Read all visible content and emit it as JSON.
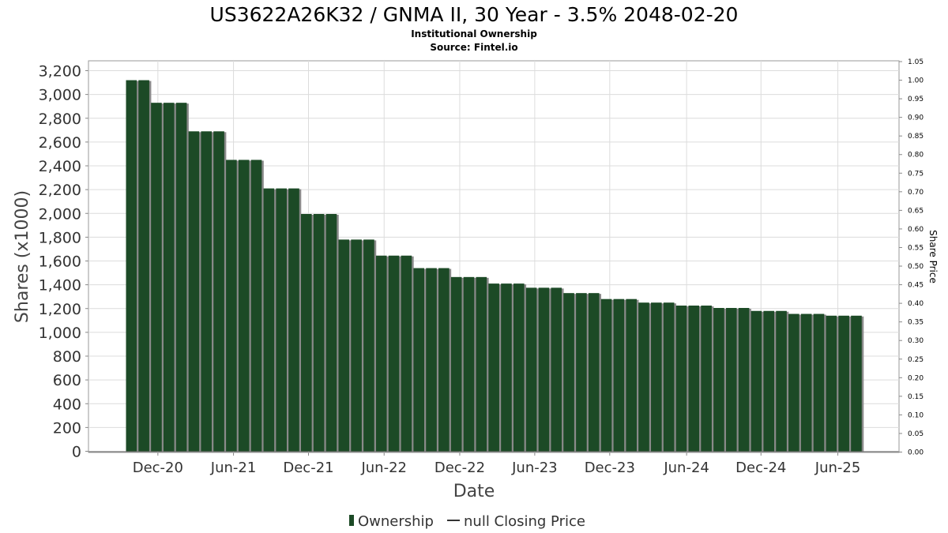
{
  "chart_data": {
    "type": "bar",
    "title": "US3622A26K32 / GNMA II, 30 Year - 3.5% 2048-02-20",
    "subtitle_lines": [
      "Institutional Ownership",
      "Source: Fintel.io"
    ],
    "xlabel": "Date",
    "ylabel": "Shares (x1000)",
    "y2label": "Share Price",
    "ylim": [
      0,
      3200
    ],
    "yticks": [
      "0",
      "200",
      "400",
      "600",
      "800",
      "1,000",
      "1,200",
      "1,400",
      "1,600",
      "1,800",
      "2,000",
      "2,200",
      "2,400",
      "2,600",
      "2,800",
      "3,000",
      "3,200"
    ],
    "y2lim": [
      0,
      1.05
    ],
    "y2ticks": [
      "0.00",
      "0.05",
      "0.10",
      "0.15",
      "0.20",
      "0.25",
      "0.30",
      "0.35",
      "0.40",
      "0.45",
      "0.50",
      "0.55",
      "0.60",
      "0.65",
      "0.70",
      "0.75",
      "0.80",
      "0.85",
      "0.90",
      "0.95",
      "1.00",
      "1.05"
    ],
    "xticks": [
      "Dec-20",
      "Jun-21",
      "Dec-21",
      "Jun-22",
      "Dec-22",
      "Jun-23",
      "Dec-23",
      "Jun-24",
      "Dec-24",
      "Jun-25"
    ],
    "grid": true,
    "legend_position": "bottom",
    "series": [
      {
        "name": "Ownership",
        "color": "#1c4a26",
        "values": [
          3120,
          3120,
          2930,
          2930,
          2930,
          2690,
          2690,
          2690,
          2450,
          2450,
          2450,
          2210,
          2210,
          2210,
          1995,
          1995,
          1995,
          1780,
          1780,
          1780,
          1645,
          1645,
          1645,
          1540,
          1540,
          1540,
          1465,
          1465,
          1465,
          1410,
          1410,
          1410,
          1375,
          1375,
          1375,
          1330,
          1330,
          1330,
          1280,
          1280,
          1280,
          1250,
          1250,
          1250,
          1225,
          1225,
          1225,
          1205,
          1205,
          1205,
          1180,
          1180,
          1180,
          1155,
          1155,
          1155,
          1140,
          1140,
          1140
        ]
      },
      {
        "name": "null Closing Price",
        "color": "#333333",
        "values": []
      }
    ]
  }
}
